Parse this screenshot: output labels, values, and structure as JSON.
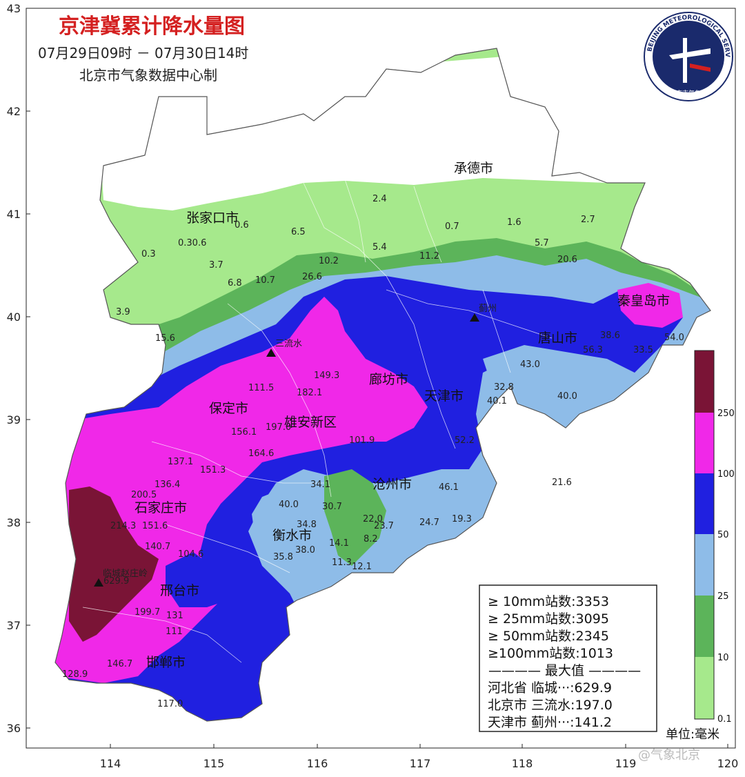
{
  "title": "京津冀累计降水量图",
  "subtitle": "07月29日09时 － 07月30日14时",
  "maker": "北京市气象数据中心制",
  "logo": {
    "ring_text": "BEIJING METEOROLOGICAL SERVICE",
    "bottom_text": "北京市气象局"
  },
  "axes": {
    "x_ticks": [
      "114",
      "115",
      "116",
      "117",
      "118",
      "119",
      "120"
    ],
    "y_ticks": [
      "43",
      "42",
      "41",
      "40",
      "39",
      "38",
      "37",
      "36"
    ]
  },
  "colors": {
    "c0": "#a6e98c",
    "c10": "#5cb45a",
    "c25": "#8ebce8",
    "c50": "#2020e0",
    "c100": "#f028e8",
    "c250": "#7a1436",
    "boundary": "#ffffff",
    "frame": "#222222"
  },
  "cities": [
    {
      "name": "承德市"
    },
    {
      "name": "张家口市"
    },
    {
      "name": "秦皇岛市"
    },
    {
      "name": "唐山市"
    },
    {
      "name": "天津市"
    },
    {
      "name": "廊坊市"
    },
    {
      "name": "保定市"
    },
    {
      "name": "雄安新区"
    },
    {
      "name": "沧州市"
    },
    {
      "name": "石家庄市"
    },
    {
      "name": "衡水市"
    },
    {
      "name": "邢台市"
    },
    {
      "name": "邯郸市"
    }
  ],
  "stations": [
    {
      "name": "三流水"
    },
    {
      "name": "临城赵庄岭"
    },
    {
      "name": "蓟州"
    }
  ],
  "values": [
    "2.4",
    "0.6",
    "6.5",
    "0.7",
    "1.6",
    "2.7",
    "0.3",
    "0.30.6",
    "3.7",
    "5.4",
    "11.2",
    "5.7",
    "20.6",
    "10.2",
    "6.8",
    "10.7",
    "26.6",
    "3.9",
    "15.6",
    "38.6",
    "56.3",
    "33.5",
    "54.0",
    "43.0",
    "32.8",
    "40.1",
    "40.0",
    "52.2",
    "21.6",
    "149.3",
    "182.1",
    "197.0",
    "156.1",
    "137.1",
    "151.3",
    "136.4",
    "40.0",
    "34.1",
    "30.7",
    "46.1",
    "22.0",
    "23.7",
    "19.3",
    "24.7",
    "14.1",
    "34.8",
    "38.0",
    "35.8",
    "11.3",
    "12.1",
    "8.2",
    "200.5",
    "214.3",
    "151.6",
    "140.7",
    "104.6",
    "199.7",
    "131",
    "111",
    "146.7",
    "117.0",
    "128.9",
    "629.9",
    "164.6",
    "101.9",
    "111.5"
  ],
  "legend": {
    "rows": [
      {
        "label": "≥ 10mm站数:3353"
      },
      {
        "label": "≥ 25mm站数:3095"
      },
      {
        "label": "≥ 50mm站数:2345"
      },
      {
        "label": "≥100mm站数:1013"
      }
    ],
    "max_header": "———— 最大值 ————",
    "max_rows": [
      {
        "label": "河北省 临城···:629.9"
      },
      {
        "label": "北京市 三流水:197.0"
      },
      {
        "label": "天津市 蓟州···:141.2"
      }
    ]
  },
  "colorbar": {
    "ticks": [
      "250",
      "100",
      "50",
      "25",
      "10",
      "0.1"
    ],
    "unit": "单位:毫米"
  },
  "watermark": "@气象北京"
}
